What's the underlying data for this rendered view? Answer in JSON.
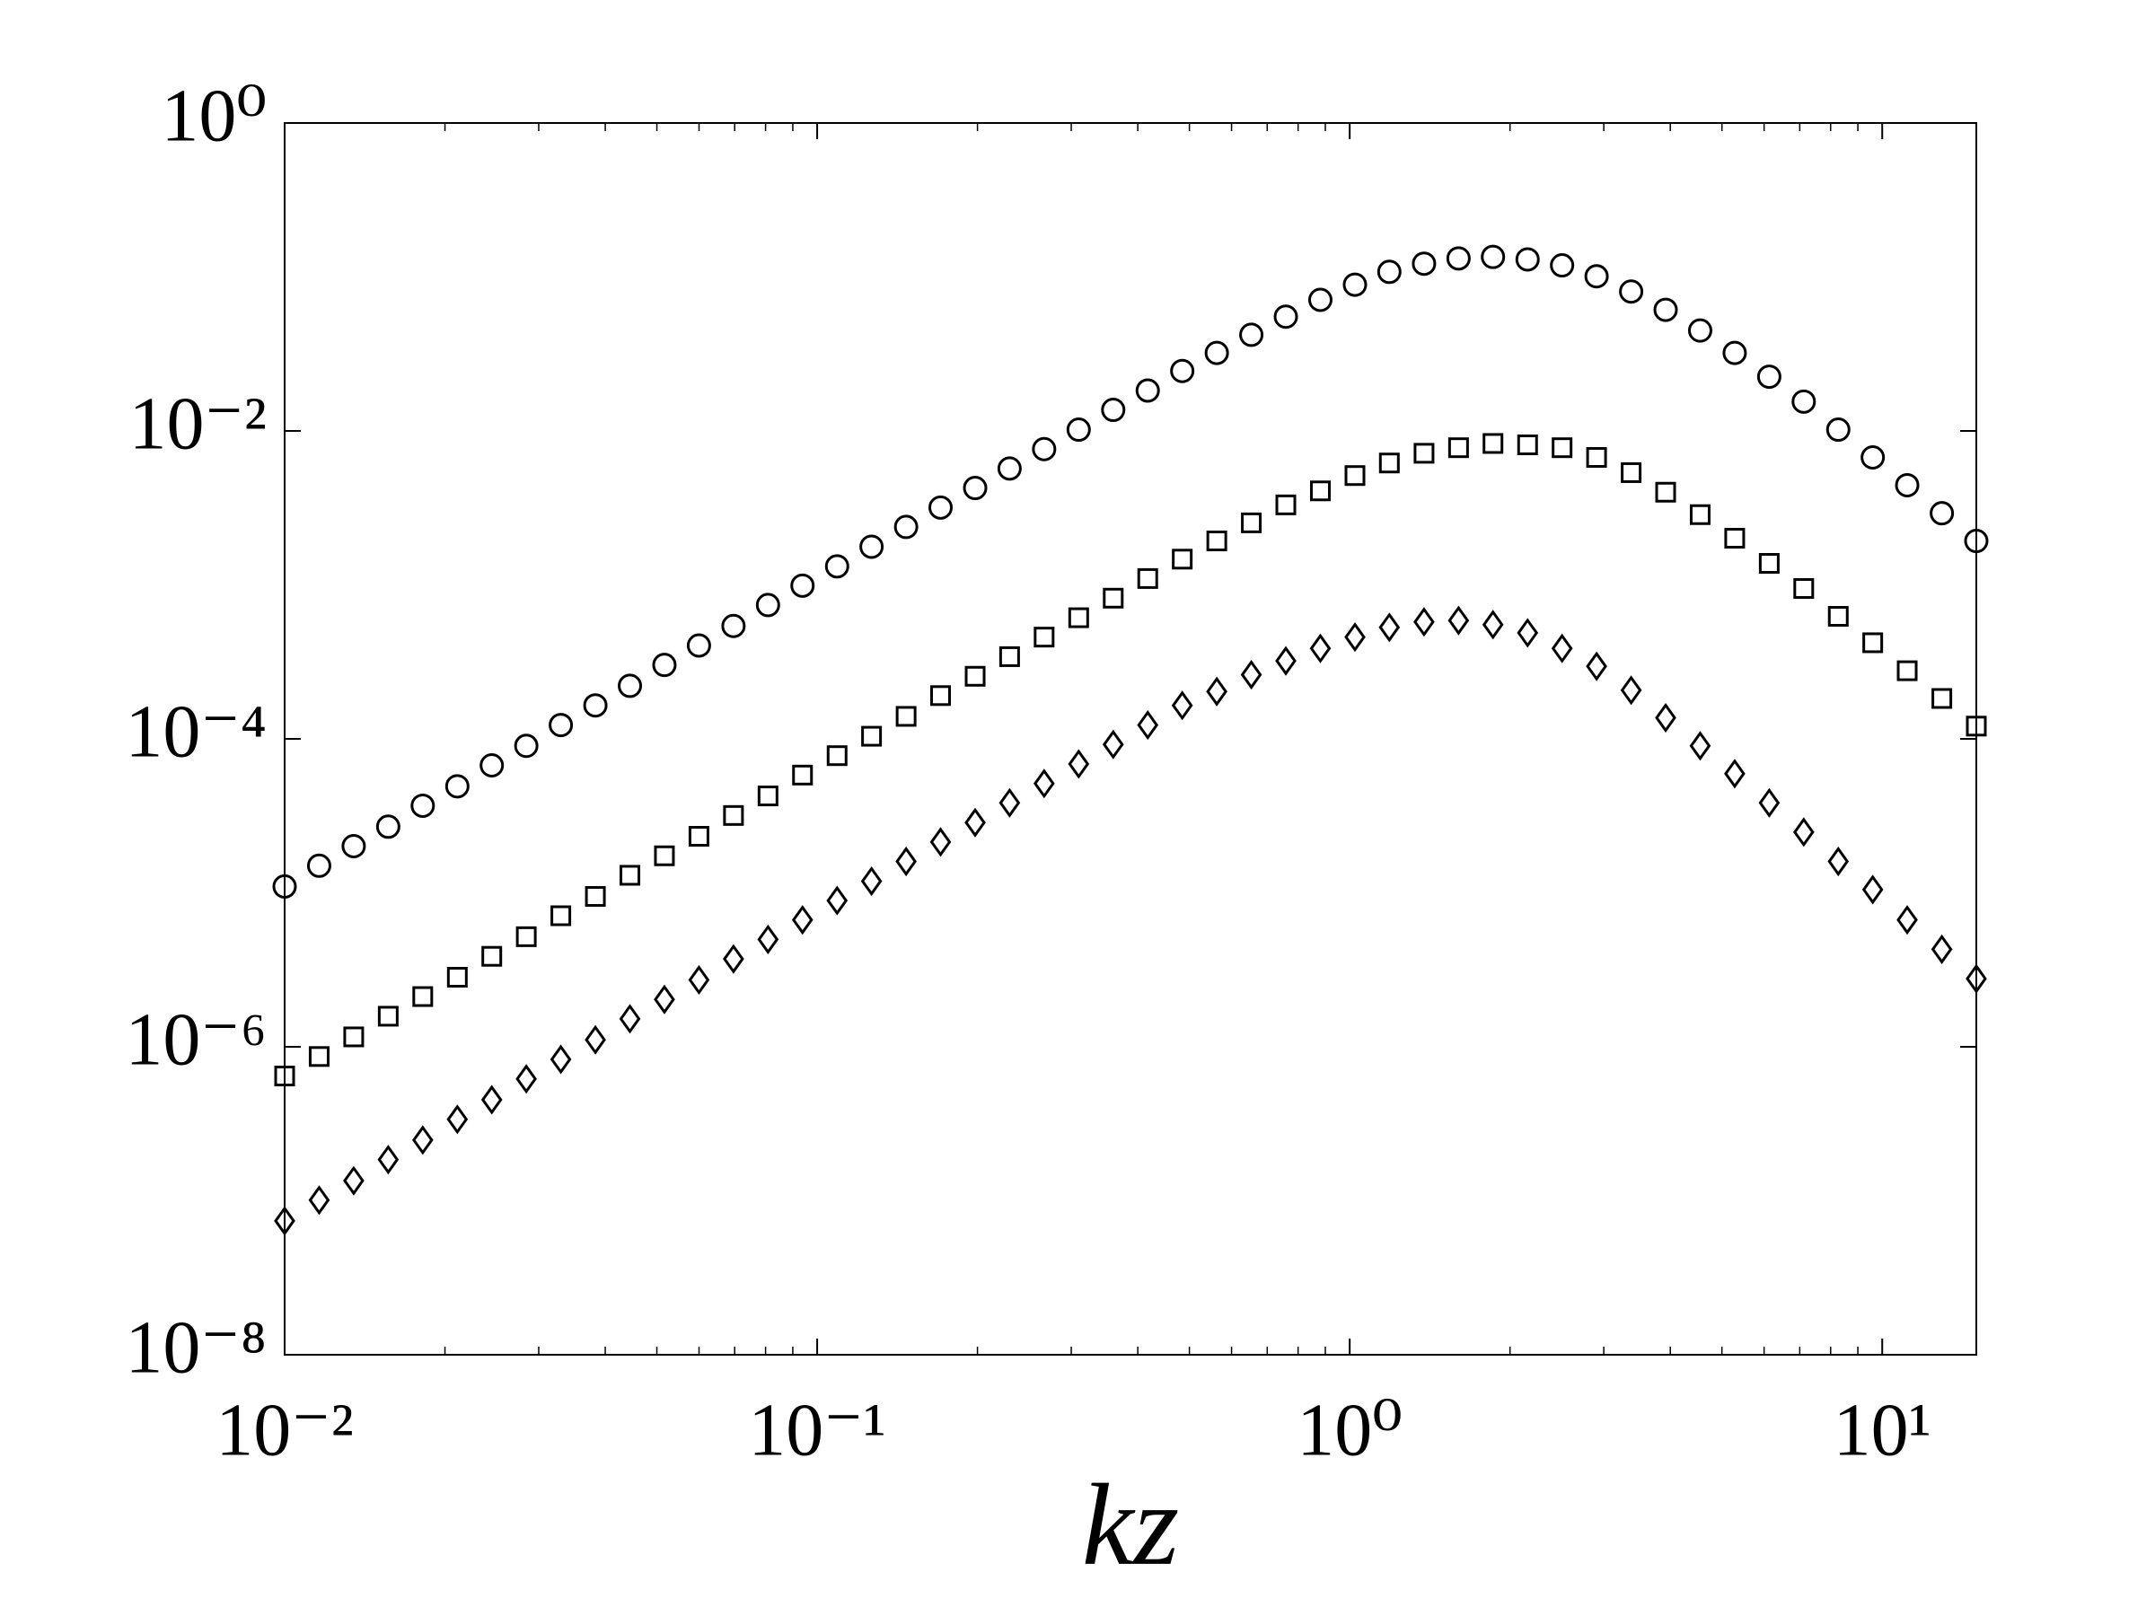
{
  "chart_data": {
    "type": "scatter",
    "xlabel": "kz",
    "xscale": "log",
    "yscale": "log",
    "xlim": [
      0.01,
      15.02
    ],
    "ylim": [
      1e-08,
      1
    ],
    "xticks": [
      {
        "value": 0.01,
        "label": "10⁻²"
      },
      {
        "value": 0.1,
        "label": "10⁻¹"
      },
      {
        "value": 1,
        "label": "10⁰"
      },
      {
        "value": 10,
        "label": "10¹"
      }
    ],
    "xticks_minor": [
      0.02,
      0.03,
      0.04,
      0.05,
      0.06,
      0.07,
      0.08,
      0.09,
      0.2,
      0.3,
      0.4,
      0.5,
      0.6,
      0.7,
      0.8,
      0.9,
      2,
      3,
      4,
      5,
      6,
      7,
      8,
      9
    ],
    "yticks": [
      {
        "value": 1e-08,
        "label": "10⁻⁸"
      },
      {
        "value": 1e-06,
        "label": "10⁻⁶"
      },
      {
        "value": 0.0001,
        "label": "10⁻⁴"
      },
      {
        "value": 0.01,
        "label": "10⁻²"
      },
      {
        "value": 1,
        "label": "10⁰"
      }
    ],
    "x": [
      0.01,
      0.01161,
      0.01348,
      0.01565,
      0.01817,
      0.0211,
      0.02449,
      0.02843,
      0.03301,
      0.03833,
      0.0445,
      0.05166,
      0.05998,
      0.06964,
      0.08085,
      0.09386,
      0.109,
      0.1265,
      0.1469,
      0.1705,
      0.198,
      0.2298,
      0.2668,
      0.3098,
      0.3597,
      0.4176,
      0.4848,
      0.5629,
      0.6535,
      0.7587,
      0.8809,
      1.023,
      1.187,
      1.379,
      1.601,
      1.858,
      2.158,
      2.505,
      2.908,
      3.377,
      3.92,
      4.551,
      5.284,
      6.135,
      7.122,
      8.269,
      9.598,
      11.14,
      12.94,
      15.02
    ],
    "series": [
      {
        "marker": "circle",
        "color": "#000000",
        "values": [
          1.1e-05,
          1.5e-05,
          2.01e-05,
          2.69e-05,
          3.68e-05,
          4.92e-05,
          6.73e-05,
          9.01e-05,
          0.000123,
          0.000165,
          0.000221,
          0.000302,
          0.000404,
          0.000541,
          0.00074,
          0.000989,
          0.00132,
          0.00177,
          0.00238,
          0.00318,
          0.00426,
          0.0057,
          0.00762,
          0.0102,
          0.0137,
          0.0183,
          0.0245,
          0.0321,
          0.0421,
          0.0552,
          0.071,
          0.0891,
          0.108,
          0.122,
          0.132,
          0.135,
          0.13,
          0.119,
          0.101,
          0.0804,
          0.0612,
          0.0449,
          0.0321,
          0.0225,
          0.0155,
          0.0102,
          0.00673,
          0.00444,
          0.00292,
          0.00193
        ]
      },
      {
        "marker": "square",
        "color": "#000000",
        "values": [
          6.46e-07,
          8.65e-07,
          1.16e-06,
          1.58e-06,
          2.12e-06,
          2.83e-06,
          3.87e-06,
          5.19e-06,
          7.1e-06,
          9.48e-06,
          1.3e-05,
          1.74e-05,
          2.33e-05,
          3.18e-05,
          4.26e-05,
          5.82e-05,
          7.78e-05,
          0.000104,
          0.00014,
          0.000191,
          0.000255,
          0.000342,
          0.000458,
          0.000612,
          0.00082,
          0.0011,
          0.00147,
          0.00193,
          0.00253,
          0.00331,
          0.00408,
          0.00513,
          0.00619,
          0.00716,
          0.00778,
          0.00829,
          0.00812,
          0.00778,
          0.00673,
          0.00536,
          0.004,
          0.00286,
          0.00201,
          0.00138,
          0.000948,
          0.000625,
          0.000421,
          0.000277,
          0.000183,
          0.000121
        ]
      },
      {
        "marker": "diamond",
        "color": "#000000",
        "values": [
          7.4e-08,
          1.01e-07,
          1.35e-07,
          1.85e-07,
          2.48e-07,
          3.38e-07,
          4.53e-07,
          6.19e-07,
          8.29e-07,
          1.11e-06,
          1.52e-06,
          2.03e-06,
          2.72e-06,
          3.72e-06,
          4.98e-06,
          6.67e-06,
          8.91e-06,
          1.19e-05,
          1.6e-05,
          2.14e-05,
          2.86e-05,
          3.84e-05,
          5.13e-05,
          6.87e-05,
          9.2e-05,
          0.000123,
          0.000165,
          0.000203,
          0.000261,
          0.000321,
          0.000387,
          0.000458,
          0.00053,
          0.000575,
          0.000587,
          0.000552,
          0.000488,
          0.000387,
          0.000296,
          0.000207,
          0.000137,
          9.01e-05,
          5.94e-05,
          3.84e-05,
          2.48e-05,
          1.6e-05,
          1.05e-05,
          6.67e-06,
          4.3e-06,
          2.77e-06
        ]
      }
    ]
  }
}
